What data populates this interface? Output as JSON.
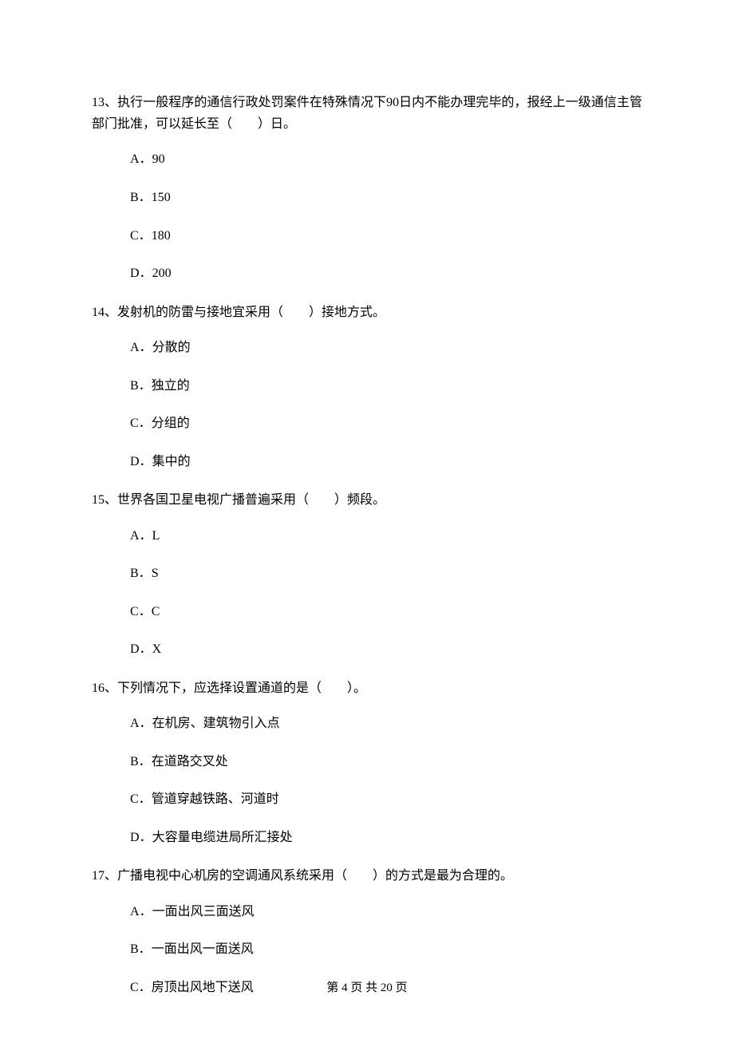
{
  "questions": [
    {
      "number": "13",
      "text": "、执行一般程序的通信行政处罚案件在特殊情况下90日内不能办理完毕的，报经上一级通信主管部门批准，可以延长至（　　）日。",
      "options": [
        {
          "label": "A．",
          "text": "90"
        },
        {
          "label": "B．",
          "text": "150"
        },
        {
          "label": "C．",
          "text": "180"
        },
        {
          "label": "D．",
          "text": "200"
        }
      ]
    },
    {
      "number": "14",
      "text": "、发射机的防雷与接地宜采用（　　）接地方式。",
      "options": [
        {
          "label": "A．",
          "text": "分散的"
        },
        {
          "label": "B．",
          "text": "独立的"
        },
        {
          "label": "C．",
          "text": "分组的"
        },
        {
          "label": "D．",
          "text": "集中的"
        }
      ]
    },
    {
      "number": "15",
      "text": "、世界各国卫星电视广播普遍采用（　　）频段。",
      "options": [
        {
          "label": "A．",
          "text": "L"
        },
        {
          "label": "B．",
          "text": "S"
        },
        {
          "label": "C．",
          "text": "C"
        },
        {
          "label": "D．",
          "text": "X"
        }
      ]
    },
    {
      "number": "16",
      "text": "、下列情况下，应选择设置通道的是（　　）。",
      "options": [
        {
          "label": "A．",
          "text": "在机房、建筑物引入点"
        },
        {
          "label": "B．",
          "text": "在道路交叉处"
        },
        {
          "label": "C．",
          "text": "管道穿越铁路、河道时"
        },
        {
          "label": "D．",
          "text": "大容量电缆进局所汇接处"
        }
      ]
    },
    {
      "number": "17",
      "text": "、广播电视中心机房的空调通风系统采用（　　）的方式是最为合理的。",
      "options": [
        {
          "label": "A．",
          "text": "一面出风三面送风"
        },
        {
          "label": "B．",
          "text": "一面出风一面送风"
        },
        {
          "label": "C．",
          "text": "房顶出风地下送风"
        }
      ]
    }
  ],
  "footer": {
    "text": "第 4 页 共 20 页"
  }
}
